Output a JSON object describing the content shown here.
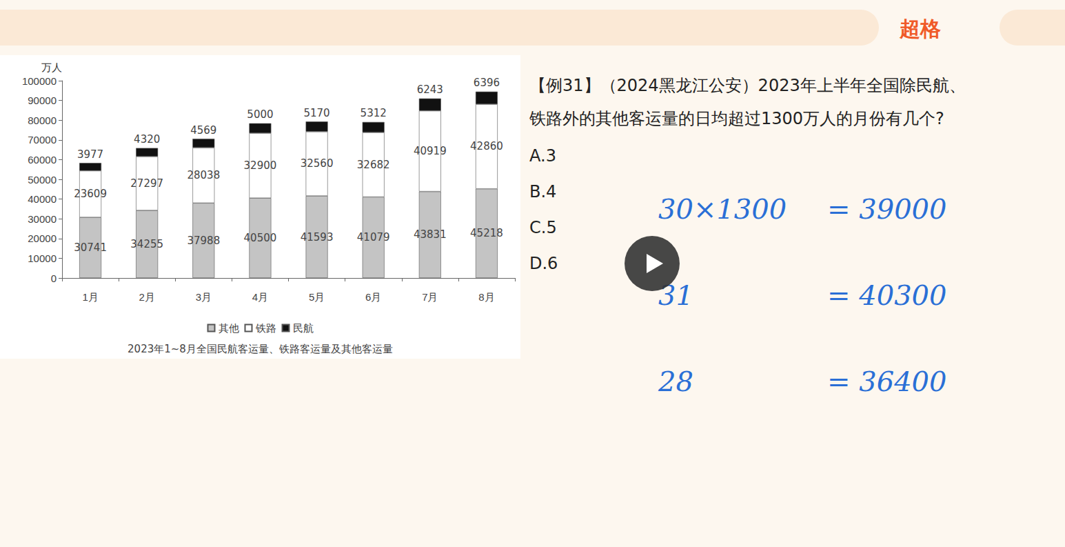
{
  "chart_data": {
    "type": "bar",
    "stacked": true,
    "title": "2023年1~8月全国民航客运量、铁路客运量及其他客运量",
    "y_label": "万人",
    "categories": [
      "1月",
      "2月",
      "3月",
      "4月",
      "5月",
      "6月",
      "7月",
      "8月"
    ],
    "series": [
      {
        "name": "其他",
        "color": "#c4c4c4",
        "values": [
          30741,
          34255,
          37988,
          40500,
          41593,
          41079,
          43831,
          45218
        ]
      },
      {
        "name": "铁路",
        "color": "#ffffff",
        "values": [
          23609,
          27297,
          28038,
          32900,
          32560,
          32682,
          40919,
          42860
        ]
      },
      {
        "name": "民航",
        "color": "#111111",
        "values": [
          3977,
          4320,
          4569,
          5000,
          5170,
          5312,
          6243,
          6396
        ]
      }
    ],
    "ylim": [
      0,
      100000
    ],
    "yticks": [
      0,
      10000,
      20000,
      30000,
      40000,
      50000,
      60000,
      70000,
      80000,
      90000,
      100000
    ],
    "grid": false,
    "legend": "bottom",
    "data_labels": true
  },
  "page": {
    "logo": "超格",
    "question": [
      "【例31】（2024黑龙江公安）2023年上半年全国除民航、",
      "铁路外的其他客运量的日均超过1300万人的月份有几个?"
    ],
    "options": [
      "A.3",
      "B.4",
      "C.5",
      "D.6"
    ],
    "notes": [
      [
        "30×1300",
        "= 39000"
      ],
      [
        "31",
        "= 40300"
      ],
      [
        "28",
        "= 36400"
      ]
    ]
  }
}
